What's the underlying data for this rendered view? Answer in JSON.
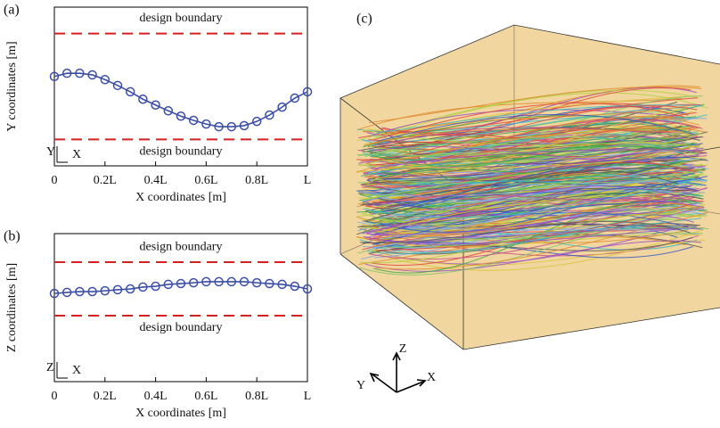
{
  "chart_data": [
    {
      "type": "line",
      "panel_label": "(a)",
      "xlabel": "X coordinates [m]",
      "ylabel": "Y coordinates [m]",
      "x": [
        0,
        0.05,
        0.1,
        0.15,
        0.2,
        0.25,
        0.3,
        0.35,
        0.4,
        0.45,
        0.5,
        0.55,
        0.6,
        0.65,
        0.7,
        0.75,
        0.8,
        0.85,
        0.9,
        0.95,
        1
      ],
      "series": [
        {
          "color": "#3b4ea6",
          "values": [
            0.19,
            0.25,
            0.25,
            0.22,
            0.13,
            0.02,
            -0.1,
            -0.24,
            -0.35,
            -0.46,
            -0.56,
            -0.64,
            -0.71,
            -0.76,
            -0.76,
            -0.74,
            -0.66,
            -0.54,
            -0.39,
            -0.22,
            -0.1
          ]
        }
      ],
      "xlim": [
        0,
        1
      ],
      "ylim": [
        -1.5,
        1.5
      ],
      "xticks": [
        0,
        {
          "value": 0.2,
          "label": "0.2L"
        },
        {
          "value": 0.4,
          "label": "0.4L"
        },
        {
          "value": 0.6,
          "label": "0.6L"
        },
        {
          "value": 0.8,
          "label": "0.8L"
        },
        {
          "value": 1,
          "label": "L"
        }
      ],
      "boundaries": [
        1,
        -1
      ],
      "boundary_color": "#d42020",
      "annotations": [
        {
          "text": "design boundary",
          "y": 1
        },
        {
          "text": "design boundary",
          "y": -1
        }
      ],
      "axis_icon": [
        "Y",
        "X"
      ]
    },
    {
      "type": "line",
      "panel_label": "(b)",
      "xlabel": "X coordinates [m]",
      "ylabel": "Z coordinates [m]",
      "x": [
        0,
        0.05,
        0.1,
        0.15,
        0.2,
        0.25,
        0.3,
        0.35,
        0.4,
        0.45,
        0.5,
        0.55,
        0.6,
        0.65,
        0.7,
        0.75,
        0.8,
        0.85,
        0.9,
        0.95,
        1
      ],
      "series": [
        {
          "color": "#3b4ea6",
          "values": [
            -0.17,
            -0.13,
            -0.1,
            -0.1,
            -0.07,
            -0.03,
            0,
            0.07,
            0.1,
            0.17,
            0.2,
            0.23,
            0.27,
            0.27,
            0.27,
            0.27,
            0.23,
            0.2,
            0.17,
            0.1,
            0
          ]
        }
      ],
      "xlim": [
        0,
        1
      ],
      "ylim": [
        -3.47,
        2.07
      ],
      "xticks": [
        0,
        {
          "value": 0.2,
          "label": "0.2L"
        },
        {
          "value": 0.4,
          "label": "0.4L"
        },
        {
          "value": 0.6,
          "label": "0.6L"
        },
        {
          "value": 0.8,
          "label": "0.8L"
        },
        {
          "value": 1,
          "label": "L"
        }
      ],
      "boundaries": [
        1,
        -1
      ],
      "boundary_color": "#d42020",
      "annotations": [
        {
          "text": "design boundary",
          "y": 1
        },
        {
          "text": "design boundary",
          "y": -1
        }
      ],
      "axis_icon": [
        "Z",
        "X"
      ]
    }
  ],
  "panel_c": {
    "label": "(c)",
    "axes": [
      "Z",
      "X",
      "Y"
    ]
  }
}
